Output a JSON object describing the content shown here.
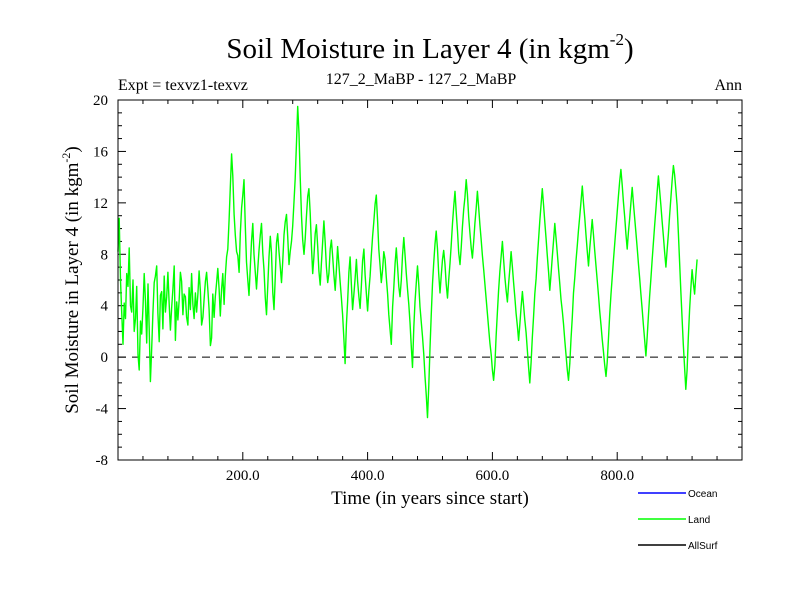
{
  "chart_data": {
    "type": "line",
    "title_main": "Soil Moisture in Layer 4 (in kgm",
    "title_sup": "-2",
    "title_close": ")",
    "subtitle_left": "Expt = texvz1-texvz",
    "subtitle_center": "127_2_MaBP - 127_2_MaBP",
    "subtitle_right": "Ann",
    "xlabel": "Time (in years since start)",
    "ylabel_main": "Soil Moisture in Layer 4 (in kgm",
    "ylabel_sup": "-2",
    "ylabel_close": ")",
    "xlim": [
      0,
      1000
    ],
    "ylim": [
      -8,
      20
    ],
    "x_ticks": [
      200,
      400,
      600,
      800
    ],
    "x_tick_labels": [
      "200.0",
      "400.0",
      "600.0",
      "800.0"
    ],
    "y_ticks": [
      -8,
      -4,
      0,
      4,
      8,
      12,
      16,
      20
    ],
    "y_tick_labels": [
      "-8",
      "-4",
      "0",
      "4",
      "8",
      "12",
      "16",
      "20"
    ],
    "reference_line": 0,
    "legend": [
      {
        "name": "Ocean",
        "color": "#0000ff"
      },
      {
        "name": "Land",
        "color": "#00ff00"
      },
      {
        "name": "AllSurf",
        "color": "#000000"
      }
    ],
    "series": [
      {
        "name": "Land",
        "color": "#00ff00",
        "x_start": 0,
        "x_step": 2,
        "values": [
          8.2,
          10.8,
          6.0,
          3.5,
          1.0,
          4.2,
          3.0,
          6.5,
          5.5,
          8.5,
          4.0,
          3.5,
          6.0,
          2.0,
          3.0,
          5.5,
          0.2,
          -1.0,
          2.8,
          1.8,
          3.9,
          6.5,
          4.3,
          1.1,
          5.7,
          2.2,
          -1.9,
          0.7,
          3.4,
          5.8,
          6.3,
          7.1,
          3.4,
          1.2,
          4.8,
          5.1,
          2.2,
          6.3,
          3.5,
          4.7,
          6.6,
          4.1,
          2.1,
          3.9,
          5.3,
          7.1,
          1.3,
          4.3,
          2.9,
          4.5,
          6.6,
          5.9,
          3.3,
          4.9,
          4.7,
          3.1,
          2.5,
          5.4,
          3.7,
          6.5,
          4.1,
          3.0,
          5.0,
          3.5,
          4.9,
          6.7,
          5.1,
          2.5,
          3.1,
          4.5,
          5.9,
          6.6,
          5.2,
          3.7,
          0.9,
          1.5,
          4.9,
          3.1,
          4.7,
          5.8,
          6.9,
          5.3,
          3.2,
          5.3,
          6.5,
          4.1,
          6.3,
          7.8,
          8.4,
          10.7,
          13.2,
          15.8,
          14.1,
          11.1,
          9.5,
          8.2,
          7.9,
          6.6,
          9.6,
          11.6,
          12.6,
          13.8,
          10.2,
          7.4,
          6.0,
          4.8,
          7.0,
          9.0,
          10.4,
          8.0,
          6.6,
          5.3,
          6.9,
          8.3,
          9.5,
          10.4,
          8.1,
          6.8,
          4.6,
          3.3,
          5.6,
          7.8,
          9.4,
          8.1,
          5.0,
          3.7,
          6.1,
          8.9,
          9.6,
          8.2,
          7.1,
          5.8,
          7.4,
          9.5,
          10.5,
          11.1,
          9.4,
          7.2,
          8.2,
          9.0,
          10.2,
          12.1,
          13.9,
          16.7,
          19.5,
          17.4,
          14.0,
          11.0,
          9.1,
          8.0,
          9.2,
          10.9,
          12.5,
          13.1,
          11.2,
          8.7,
          6.5,
          7.8,
          9.6,
          10.3,
          8.6,
          6.7,
          5.6,
          7.3,
          9.0,
          10.6,
          8.9,
          7.0,
          5.8,
          6.5,
          8.4,
          9.1,
          7.8,
          6.4,
          5.2,
          6.8,
          8.6,
          7.2,
          5.9,
          4.6,
          3.3,
          1.4,
          -0.5,
          2.5,
          4.3,
          6.6,
          7.8,
          5.6,
          3.7,
          4.9,
          6.1,
          7.6,
          5.9,
          4.7,
          3.8,
          5.6,
          7.5,
          8.4,
          6.4,
          4.9,
          3.6,
          5.1,
          6.3,
          7.9,
          9.4,
          10.5,
          11.9,
          12.6,
          10.6,
          8.4,
          7.1,
          5.8,
          6.8,
          8.2,
          7.6,
          6.2,
          4.9,
          3.3,
          2.1,
          1.0,
          3.9,
          5.4,
          7.3,
          8.5,
          7.0,
          5.5,
          4.7,
          6.0,
          7.9,
          9.3,
          8.0,
          6.5,
          5.3,
          4.1,
          2.7,
          0.8,
          -0.8,
          2.3,
          4.3,
          5.8,
          7.1,
          5.6,
          3.9,
          2.7,
          1.6,
          0.2,
          -1.5,
          -3.0,
          -4.7,
          -2.2,
          0.7,
          3.2,
          5.7,
          7.3,
          8.8,
          9.8,
          8.4,
          6.5,
          5.0,
          6.3,
          7.6,
          8.3,
          7.2,
          5.7,
          4.6,
          6.0,
          7.3,
          8.7,
          10.4,
          11.7,
          12.9,
          11.3,
          9.8,
          8.1,
          7.2,
          8.5,
          10.1,
          11.5,
          12.4,
          13.8,
          12.7,
          10.9,
          9.7,
          8.5,
          7.7,
          9.0,
          10.4,
          11.6,
          12.9,
          11.6,
          10.3,
          9.1,
          7.9,
          6.8,
          5.7,
          4.5,
          3.4,
          2.2,
          1.1,
          0.2,
          -1.0,
          -1.8,
          -0.6,
          1.6,
          3.5,
          5.2,
          6.7,
          7.8,
          9.0,
          7.6,
          6.2,
          5.2,
          4.3,
          5.7,
          6.9,
          8.2,
          7.0,
          5.8,
          4.6,
          3.4,
          2.4,
          1.3,
          2.6,
          3.9,
          5.1,
          4.0,
          2.9,
          1.9,
          0.6,
          -0.8,
          -2.0,
          -0.4,
          1.5,
          3.2,
          4.9,
          6.1,
          7.7,
          9.2,
          10.6,
          11.9,
          13.1,
          11.8,
          10.5,
          9.2,
          7.9,
          6.6,
          5.2,
          6.5,
          7.8,
          9.1,
          10.4,
          9.3,
          8.1,
          6.9,
          5.7,
          4.5,
          3.6,
          2.6,
          1.3,
          0.2,
          -1.0,
          -1.8,
          -0.5,
          1.4,
          3.1,
          5.0,
          6.2,
          7.5,
          8.7,
          9.9,
          11.0,
          12.1,
          13.3,
          12.0,
          10.8,
          9.5,
          8.3,
          7.1,
          8.4,
          9.6,
          10.7,
          9.5,
          8.3,
          7.1,
          6.0,
          4.8,
          3.6,
          2.5,
          1.4,
          0.4,
          -0.6,
          -1.5,
          -0.4,
          1.5,
          3.3,
          4.9,
          6.2,
          7.6,
          8.8,
          10.1,
          11.3,
          12.5,
          13.7,
          14.6,
          13.4,
          12.1,
          10.9,
          9.6,
          8.4,
          9.7,
          10.8,
          12.0,
          13.2,
          12.0,
          10.8,
          9.7,
          8.5,
          7.3,
          6.1,
          4.9,
          3.7,
          2.5,
          1.3,
          0.1,
          1.6,
          3.2,
          4.7,
          6.1,
          7.5,
          8.9,
          10.2,
          11.5,
          12.8,
          14.1,
          13.0,
          11.8,
          10.6,
          9.4,
          8.2,
          7.0,
          8.3,
          9.6,
          11.0,
          12.4,
          13.7,
          14.9,
          14.2,
          13.0,
          11.8,
          9.6,
          7.4,
          5.2,
          3.0,
          1.0,
          -0.8,
          -2.5,
          -1.0,
          1.5,
          3.7,
          5.3,
          6.8,
          5.8,
          4.9,
          6.3,
          7.6
        ]
      },
      {
        "name": "Ocean",
        "color": "#0000ff",
        "values": []
      },
      {
        "name": "AllSurf",
        "color": "#000000",
        "values": []
      }
    ]
  }
}
